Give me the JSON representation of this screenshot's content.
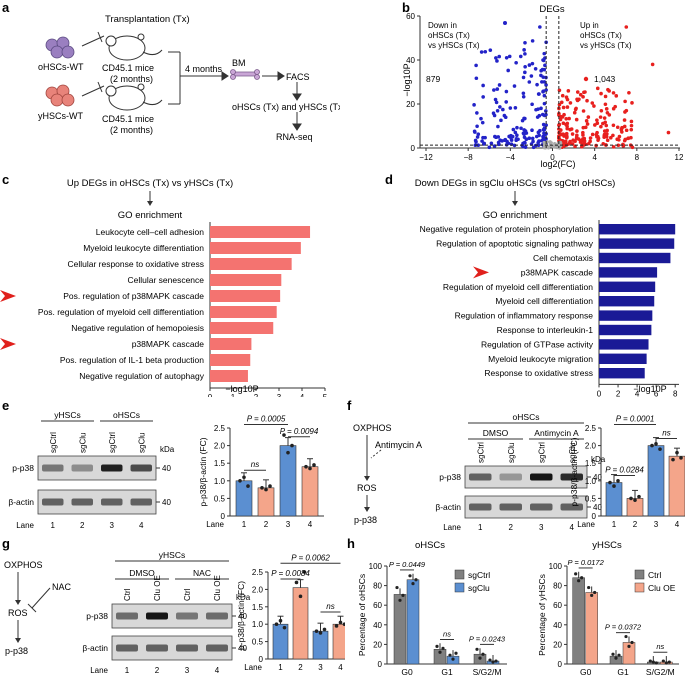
{
  "colors": {
    "red": "#ee6e6a",
    "red_bar": "#f47370",
    "blue": "#5b8fd1",
    "navy": "#1a1a96",
    "gray": "#808080",
    "peach": "#f4a58a",
    "volcano_red": "#e8201e",
    "volcano_blue": "#2323c8"
  },
  "panel_letters": {
    "a": "a",
    "b": "b",
    "c": "c",
    "d": "d",
    "e": "e",
    "f": "f",
    "g": "g",
    "h": "h"
  },
  "panel_a": {
    "transplantation": "Transplantation (Tx)",
    "donor1": "oHSCs-WT",
    "donor2": "yHSCs-WT",
    "recipient1": "CD45.1 mice",
    "recipient1_time": "(2 months)",
    "recipient2": "CD45.1 mice",
    "recipient2_time": "(2 months)",
    "wait": "4 months",
    "bm": "BM",
    "facs": "FACS",
    "sorted": "oHSCs (Tx) and yHSCs (Tx)",
    "rnaseq": "RNA-seq"
  },
  "panel_b": {
    "title": "DEGs",
    "down_label": [
      "Down in",
      "oHSCs (Tx)",
      "vs yHSCs (Tx)"
    ],
    "up_label": [
      "Up in",
      "oHSCs (Tx)",
      "vs yHSCs (Tx)"
    ],
    "down_count": "879",
    "up_count": "1,043",
    "xlabel": "log2(FC)",
    "ylabel": "−log10P",
    "xticks": [
      "−12",
      "−8",
      "−4",
      "0",
      "4",
      "8",
      "12"
    ],
    "yticks": [
      "0",
      "20",
      "40",
      "60"
    ]
  },
  "panel_c": {
    "title": "Up DEGs in oHSCs (Tx) vs yHSCs (Tx)",
    "subtitle": "GO enrichment",
    "xlabel": "−log10P",
    "xticks": [
      "0",
      "1",
      "2",
      "3",
      "4",
      "5"
    ]
  },
  "panel_d": {
    "title": "Down DEGs in sgClu oHSCs (vs sgCtrl oHSCs)",
    "subtitle": "GO enrichment",
    "xlabel": "−log10P",
    "xticks": [
      "0",
      "2",
      "4",
      "6",
      "8"
    ]
  },
  "panel_e": {
    "groups": [
      "yHSCs",
      "oHSCs"
    ],
    "lanes_labels": [
      "sgCtrl",
      "sgClu",
      "sgCtrl",
      "sgClu"
    ],
    "rows": [
      "p-p38",
      "β-actin"
    ],
    "kda": "kDa",
    "kda_vals": [
      "40",
      "40"
    ],
    "lane_title": "Lane",
    "lane_nums": [
      "1",
      "2",
      "3",
      "4"
    ],
    "ylabel": "p-p38/β-actin (FC)",
    "yticks": [
      "0",
      "0.5",
      "1.0",
      "1.5",
      "2.0",
      "2.5"
    ],
    "p1": "P = 0.0005",
    "p2": "P = 0.0094",
    "ns": "ns"
  },
  "panel_f": {
    "oxphos": "OXPHOS",
    "antimycin": "Antimycin A",
    "ros": "ROS",
    "pp38": "p-p38",
    "cell": "oHSCs",
    "conds": [
      "DMSO",
      "Antimycin A"
    ],
    "lanes_labels": [
      "sgCtrl",
      "sgClu",
      "sgCtrl",
      "sgClu"
    ],
    "rows": [
      "p-p38",
      "β-actin"
    ],
    "kda": "kDa",
    "kda_vals": [
      "40",
      "40"
    ],
    "lane_title": "Lane",
    "lane_nums": [
      "1",
      "2",
      "3",
      "4"
    ],
    "ylabel": "p-p38/β-actin (FC)",
    "yticks": [
      "0",
      "0.5",
      "1.0",
      "1.5",
      "2.0",
      "2.5"
    ],
    "p1": "P = 0.0001",
    "p2": "P = 0.0284",
    "ns": "ns"
  },
  "panel_g": {
    "oxphos": "OXPHOS",
    "nac": "NAC",
    "ros": "ROS",
    "pp38": "p-p38",
    "cell": "yHSCs",
    "conds": [
      "DMSO",
      "NAC"
    ],
    "lanes_labels": [
      "Ctrl",
      "Clu OE",
      "Ctrl",
      "Clu OE"
    ],
    "rows": [
      "p-p38",
      "β-actin"
    ],
    "kda": "kDa",
    "kda_vals": [
      "40",
      "40"
    ],
    "lane_title": "Lane",
    "lane_nums": [
      "1",
      "2",
      "3",
      "4"
    ],
    "ylabel": "p-p38/β-actin (FC)",
    "yticks": [
      "0",
      "0.5",
      "1.0",
      "1.5",
      "2.0",
      "2.5"
    ],
    "p1": "P = 0.0084",
    "p2": "P = 0.0062",
    "ns": "ns"
  },
  "panel_h": {
    "left_title": "oHSCs",
    "right_title": "yHSCs",
    "left_ylabel": "Percentage of oHSCs",
    "right_ylabel": "Percentage of yHSCs",
    "yticks": [
      "0",
      "20",
      "40",
      "60",
      "80",
      "100"
    ],
    "cats": [
      "G0",
      "G1",
      "S/G2/M"
    ],
    "left_legend": [
      "sgCtrl",
      "sgClu"
    ],
    "right_legend": [
      "Ctrl",
      "Clu OE"
    ],
    "left_p": [
      "P = 0.0449",
      "ns",
      "P = 0.0243"
    ],
    "right_p": [
      "P = 0.0172",
      "P = 0.0372",
      "ns"
    ]
  },
  "chart_data": [
    {
      "id": "c",
      "type": "bar",
      "orientation": "horizontal",
      "xlabel": "−log10P",
      "xlim": [
        0,
        5
      ],
      "categories": [
        "Leukocyte cell–cell adhesion",
        "Myeloid leukocyte differentiation",
        "Cellular response to oxidative stress",
        "Cellular senescence",
        "Pos. regulation of p38MAPK cascade",
        "Pos. regulation of myeloid cell differentiation",
        "Negative regulation of hemopoiesis",
        "p38MAPK cascade",
        "Pos. regulation of IL-1 beta production",
        "Negative regulation of autophagy"
      ],
      "values": [
        4.35,
        3.95,
        3.55,
        3.1,
        3.05,
        2.9,
        2.75,
        1.8,
        1.75,
        1.65
      ],
      "highlight": [
        4,
        7
      ]
    },
    {
      "id": "d",
      "type": "bar",
      "orientation": "horizontal",
      "xlabel": "−log10P",
      "xlim": [
        0,
        8
      ],
      "categories": [
        "Negative regulation of protein phosphorylation",
        "Regulation of apoptotic signaling pathway",
        "Cell chemotaxis",
        "p38MAPK cascade",
        "Regulation of myeloid cell differentiation",
        "Myeloid cell differentiation",
        "Regulation of inflammatory response",
        "Response to interleukin-1",
        "Regulation of GTPase activity",
        "Myeloid leukocyte migration",
        "Response to oxidative stress"
      ],
      "values": [
        8.0,
        7.9,
        7.5,
        6.1,
        5.9,
        5.8,
        5.6,
        5.5,
        5.2,
        5.0,
        4.8
      ],
      "highlight": [
        3
      ]
    },
    {
      "id": "e",
      "type": "bar",
      "categories": [
        "1",
        "2",
        "3",
        "4"
      ],
      "values": [
        1.0,
        0.8,
        2.0,
        1.4
      ],
      "ylim": [
        0,
        2.5
      ],
      "ylabel": "p-p38/β-actin (FC)"
    },
    {
      "id": "f",
      "type": "bar",
      "categories": [
        "1",
        "2",
        "3",
        "4"
      ],
      "values": [
        0.95,
        0.5,
        2.0,
        1.7
      ],
      "ylim": [
        0,
        2.5
      ],
      "ylabel": "p-p38/β-actin (FC)"
    },
    {
      "id": "g",
      "type": "bar",
      "categories": [
        "1",
        "2",
        "3",
        "4"
      ],
      "values": [
        1.0,
        2.05,
        0.8,
        1.0
      ],
      "ylim": [
        0,
        2.5
      ],
      "ylabel": "p-p38/β-actin (FC)"
    },
    {
      "id": "h_left",
      "type": "bar",
      "categories": [
        "G0",
        "G1",
        "S/G2/M"
      ],
      "ylim": [
        0,
        100
      ],
      "ylabel": "Percentage of oHSCs",
      "series": [
        {
          "name": "sgCtrl",
          "values": [
            71,
            15,
            10
          ]
        },
        {
          "name": "sgClu",
          "values": [
            86,
            8,
            3
          ]
        }
      ]
    },
    {
      "id": "h_right",
      "type": "bar",
      "categories": [
        "G0",
        "G1",
        "S/G2/M"
      ],
      "ylim": [
        0,
        100
      ],
      "ylabel": "Percentage of yHSCs",
      "series": [
        {
          "name": "Ctrl",
          "values": [
            88,
            8,
            2
          ]
        },
        {
          "name": "Clu OE",
          "values": [
            73,
            22,
            2
          ]
        }
      ]
    },
    {
      "id": "b",
      "type": "scatter",
      "title": "DEGs",
      "xlabel": "log2(FC)",
      "ylabel": "−log10P",
      "xlim": [
        -12,
        12
      ],
      "ylim": [
        0,
        60
      ],
      "series": [
        {
          "name": "Down",
          "count": "879"
        },
        {
          "name": "Up",
          "count": "1,043"
        }
      ]
    }
  ]
}
